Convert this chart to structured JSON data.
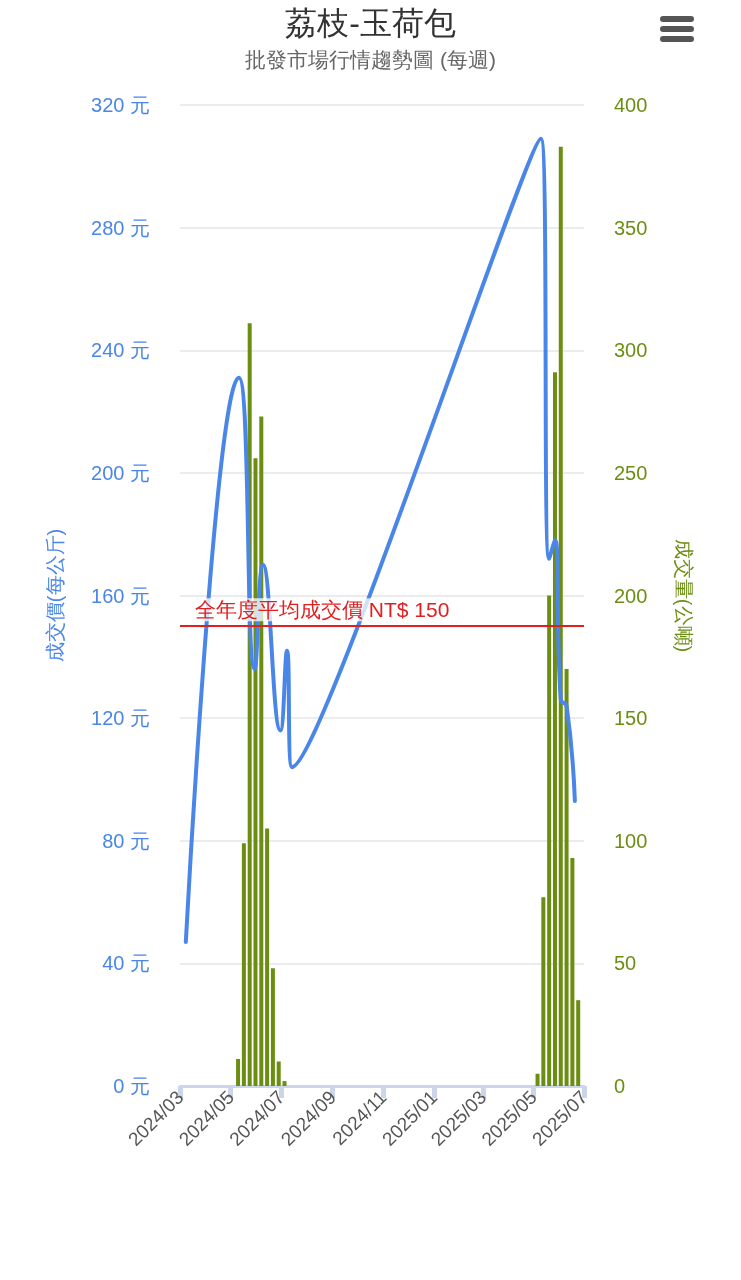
{
  "chart_data": {
    "type": "bar",
    "title": "荔枝-玉荷包",
    "subtitle": "批發市場行情趨勢圖 (每週)",
    "ylabel": "成交價(每公斤)",
    "y2label": "成交量(公噸)",
    "xlim": [
      "2024-03",
      "2025-07"
    ],
    "xticks": [
      {
        "value": "2024-03",
        "label": "2024/03"
      },
      {
        "value": "2024-05",
        "label": "2024/05"
      },
      {
        "value": "2024-07",
        "label": "2024/07"
      },
      {
        "value": "2024-09",
        "label": "2024/09"
      },
      {
        "value": "2024-11",
        "label": "2024/11"
      },
      {
        "value": "2025-01",
        "label": "2025/01"
      },
      {
        "value": "2025-03",
        "label": "2025/03"
      },
      {
        "value": "2025-05",
        "label": "2025/05"
      },
      {
        "value": "2025-07",
        "label": "2025/07"
      }
    ],
    "ylim": [
      0,
      320
    ],
    "yticks": [
      {
        "value": 0,
        "label": "0 元"
      },
      {
        "value": 40,
        "label": "40 元"
      },
      {
        "value": 80,
        "label": "80 元"
      },
      {
        "value": 120,
        "label": "120 元"
      },
      {
        "value": 160,
        "label": "160 元"
      },
      {
        "value": 200,
        "label": "200 元"
      },
      {
        "value": 240,
        "label": "240 元"
      },
      {
        "value": 280,
        "label": "280 元"
      },
      {
        "value": 320,
        "label": "320 元"
      }
    ],
    "y2lim": [
      0,
      400
    ],
    "y2ticks": [
      0,
      50,
      100,
      150,
      200,
      250,
      300,
      350,
      400
    ],
    "grid": "y",
    "marker": "none",
    "series": [
      {
        "axis": "y2",
        "color": "#6b8e12",
        "x": [
          "2024-05-10",
          "2024-05-17",
          "2024-05-24",
          "2024-05-31",
          "2024-06-07",
          "2024-06-14",
          "2024-06-21",
          "2024-06-28",
          "2024-07-05",
          "2025-05-06",
          "2025-05-13",
          "2025-05-20",
          "2025-05-27",
          "2025-06-03",
          "2025-06-10",
          "2025-06-17",
          "2025-06-24"
        ],
        "values": [
          11,
          99,
          311,
          256,
          273,
          105,
          48,
          10,
          2,
          5,
          77,
          200,
          291,
          383,
          170,
          93,
          35
        ]
      },
      {
        "type": "line",
        "axis": "y",
        "color": "#4a86e8",
        "x": [
          "2024-03-08",
          "2024-05-11",
          "2024-05-30",
          "2024-06-09",
          "2024-06-30",
          "2024-07-08",
          "2024-07-14",
          "2025-05-10",
          "2025-05-20",
          "2025-05-27",
          "2025-06-03",
          "2025-06-10",
          "2025-06-20"
        ],
        "values": [
          47,
          231,
          136,
          170,
          116,
          142,
          104,
          309,
          172,
          178,
          126,
          124,
          93
        ]
      }
    ],
    "ref_lines": [
      {
        "axis": "y",
        "value": 150,
        "label": "全年度平均成交價 NT$ 150",
        "color": "#e02020"
      }
    ]
  }
}
